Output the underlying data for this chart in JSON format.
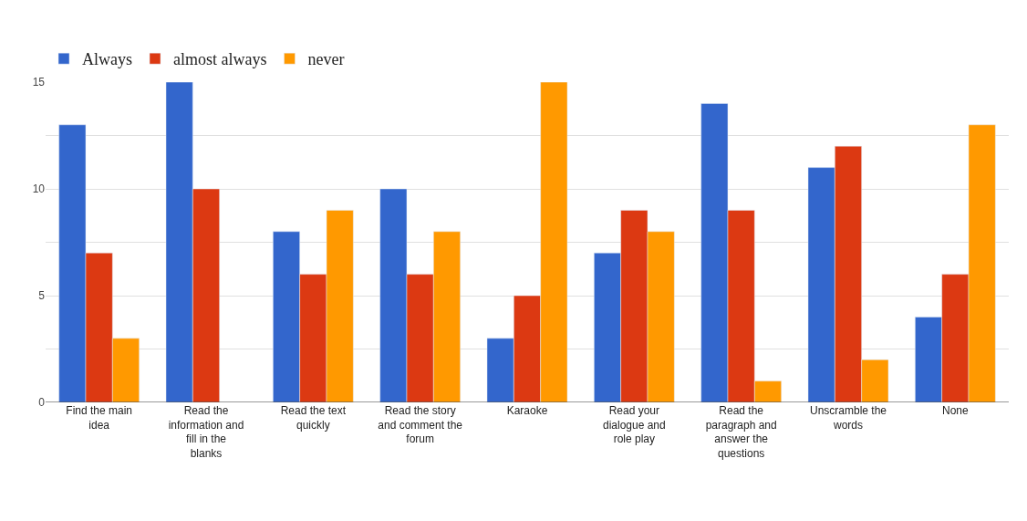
{
  "chart_data": {
    "type": "bar",
    "categories": [
      "Find the main idea",
      "Read the information and fill in the blanks",
      "Read the text quickly",
      "Read the story and comment the forum",
      "Karaoke",
      "Read your dialogue and role play",
      "Read the paragraph and answer the questions",
      "Unscramble the words",
      "None"
    ],
    "series": [
      {
        "name": "Always",
        "color": "#3366cc",
        "values": [
          13,
          15,
          8,
          10,
          3,
          7,
          14,
          11,
          4
        ]
      },
      {
        "name": "almost always",
        "color": "#dc3912",
        "values": [
          7,
          10,
          6,
          6,
          5,
          9,
          9,
          12,
          6
        ]
      },
      {
        "name": "never",
        "color": "#ff9900",
        "values": [
          3,
          null,
          9,
          8,
          15,
          8,
          1,
          2,
          13
        ]
      }
    ],
    "ylim": [
      0,
      15
    ],
    "yticks": [
      0,
      {
        "value": 2.5,
        "label": null
      },
      5,
      {
        "value": 7.5,
        "label": null
      },
      10,
      {
        "value": 12.5,
        "label": null
      },
      15
    ],
    "grid": "y",
    "legend": "top left"
  }
}
